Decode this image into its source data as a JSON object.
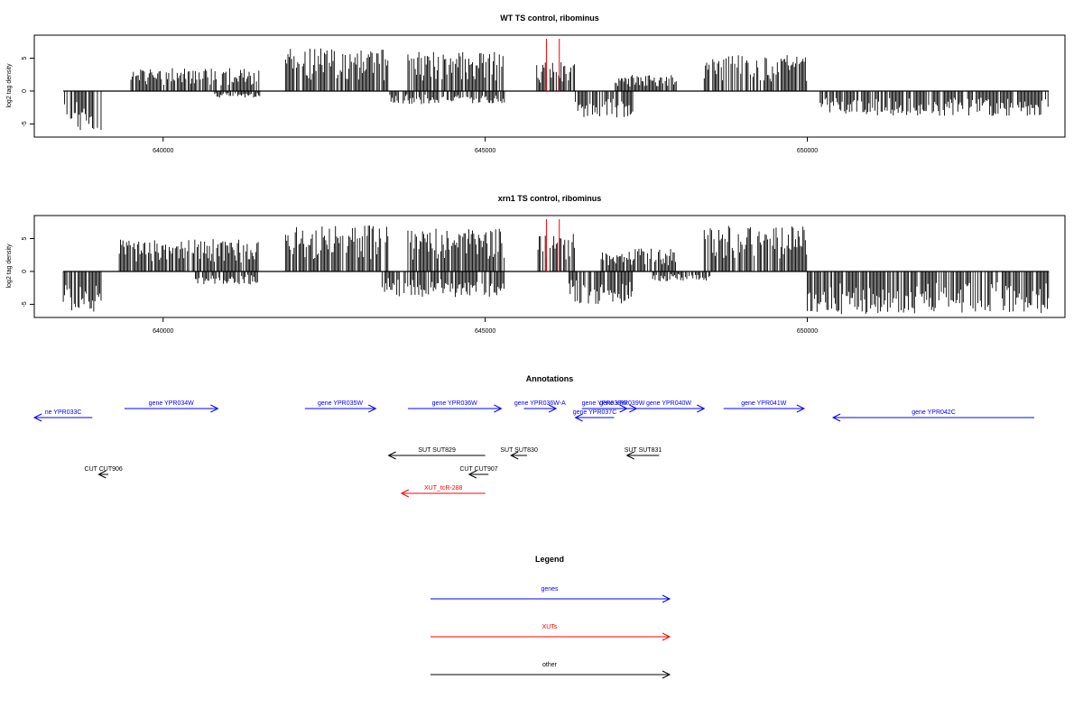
{
  "panels": [
    {
      "title": "WT TS control, ribominus",
      "ylabel": "log2 tag density",
      "markers": [
        645950,
        646150
      ]
    },
    {
      "title": "xrn1 TS control, ribominus",
      "ylabel": "log2 tag density",
      "markers": [
        645950,
        646150
      ]
    }
  ],
  "annotations": {
    "title": "Annotations",
    "features": [
      {
        "label": "ne YPR033C",
        "type": "gene",
        "start": 638000,
        "end": 638900,
        "strand": "-",
        "row": 0
      },
      {
        "label": "gene YPR034W",
        "type": "gene",
        "start": 639400,
        "end": 640850,
        "strand": "+",
        "row": 1
      },
      {
        "label": "gene YPR035W",
        "type": "gene",
        "start": 642200,
        "end": 643300,
        "strand": "+",
        "row": 1
      },
      {
        "label": "gene YPR036W",
        "type": "gene",
        "start": 643800,
        "end": 645250,
        "strand": "+",
        "row": 1
      },
      {
        "label": "gene YPR036W-A",
        "type": "gene",
        "start": 645600,
        "end": 646100,
        "strand": "+",
        "row": 1
      },
      {
        "label": "gene YPR037C",
        "type": "gene",
        "start": 646400,
        "end": 647000,
        "strand": "-",
        "row": 0
      },
      {
        "label": "gene YPR038W",
        "type": "gene",
        "start": 646500,
        "end": 647200,
        "strand": "+",
        "row": 1
      },
      {
        "label": "gene YPR039W",
        "type": "gene",
        "start": 646900,
        "end": 647350,
        "strand": "+",
        "row": 1
      },
      {
        "label": "gene YPR040W",
        "type": "gene",
        "start": 647300,
        "end": 648400,
        "strand": "+",
        "row": 1
      },
      {
        "label": "gene YPR041W",
        "type": "gene",
        "start": 648700,
        "end": 649950,
        "strand": "+",
        "row": 1
      },
      {
        "label": "gene YPR042C",
        "type": "gene",
        "start": 650400,
        "end": 653600,
        "strand": "-",
        "row": 0
      },
      {
        "label": "SUT SUT829",
        "type": "other",
        "start": 643500,
        "end": 645000,
        "strand": "-",
        "row": 2
      },
      {
        "label": "SUT SUT830",
        "type": "other",
        "start": 645400,
        "end": 645650,
        "strand": "-",
        "row": 2
      },
      {
        "label": "SUT SUT831",
        "type": "other",
        "start": 647200,
        "end": 647700,
        "strand": "-",
        "row": 2
      },
      {
        "label": "CUT CUT906",
        "type": "other",
        "start": 639000,
        "end": 639150,
        "strand": "-",
        "row": 3
      },
      {
        "label": "CUT CUT907",
        "type": "other",
        "start": 644750,
        "end": 645050,
        "strand": "-",
        "row": 3
      },
      {
        "label": "XUT_tcR-288",
        "type": "xut",
        "start": 643700,
        "end": 645000,
        "strand": "-",
        "row": 4
      }
    ]
  },
  "legend": {
    "title": "Legend",
    "items": [
      {
        "label": "genes",
        "type": "gene"
      },
      {
        "label": "XUTs",
        "type": "xut"
      },
      {
        "label": "other",
        "type": "other"
      }
    ]
  },
  "colors": {
    "gene": "#0000ff",
    "xut": "#ff0000",
    "other": "#000000",
    "marker": "#ff0000"
  },
  "chart_data": [
    {
      "type": "bar",
      "title": "WT TS control, ribominus",
      "ylabel": "log2 tag density",
      "xlim": [
        638000,
        654000
      ],
      "ylim": [
        -7,
        8.5
      ],
      "xticks": [
        640000,
        645000,
        650000
      ],
      "yticks": [
        -5,
        0,
        5
      ],
      "grid": false,
      "x_range": [
        638450,
        653750
      ],
      "plus_strand": [
        {
          "start": 639500,
          "end": 641500,
          "peak": 3.5
        },
        {
          "start": 641900,
          "end": 643500,
          "peak": 6.5
        },
        {
          "start": 643800,
          "end": 645300,
          "peak": 6.0
        },
        {
          "start": 645800,
          "end": 646400,
          "peak": 4.5
        },
        {
          "start": 647000,
          "end": 648000,
          "peak": 2.5
        },
        {
          "start": 648400,
          "end": 650000,
          "peak": 5.5
        }
      ],
      "minus_strand": [
        {
          "start": 638450,
          "end": 639050,
          "peak": -6.0
        },
        {
          "start": 640800,
          "end": 641500,
          "peak": -1.0
        },
        {
          "start": 643500,
          "end": 645300,
          "peak": -2.0
        },
        {
          "start": 646400,
          "end": 647300,
          "peak": -4.0
        },
        {
          "start": 650200,
          "end": 653750,
          "peak": -3.8
        }
      ]
    },
    {
      "type": "bar",
      "title": "xrn1 TS control, ribominus",
      "ylabel": "log2 tag density",
      "xlim": [
        638000,
        654000
      ],
      "ylim": [
        -7,
        8.5
      ],
      "xticks": [
        640000,
        645000,
        650000
      ],
      "yticks": [
        -5,
        0,
        5
      ],
      "grid": false,
      "x_range": [
        638450,
        653750
      ],
      "plus_strand": [
        {
          "start": 639300,
          "end": 641500,
          "peak": 5.0
        },
        {
          "start": 641900,
          "end": 643500,
          "peak": 7.0
        },
        {
          "start": 643800,
          "end": 645300,
          "peak": 6.5
        },
        {
          "start": 645800,
          "end": 646400,
          "peak": 6.0
        },
        {
          "start": 646800,
          "end": 648000,
          "peak": 3.5
        },
        {
          "start": 648400,
          "end": 650000,
          "peak": 7.0
        }
      ],
      "minus_strand": [
        {
          "start": 638450,
          "end": 639050,
          "peak": -6.2
        },
        {
          "start": 640500,
          "end": 641500,
          "peak": -2.0
        },
        {
          "start": 643400,
          "end": 645300,
          "peak": -4.0
        },
        {
          "start": 646300,
          "end": 647300,
          "peak": -5.0
        },
        {
          "start": 647600,
          "end": 648500,
          "peak": -1.5
        },
        {
          "start": 650000,
          "end": 653750,
          "peak": -6.5
        }
      ]
    }
  ]
}
